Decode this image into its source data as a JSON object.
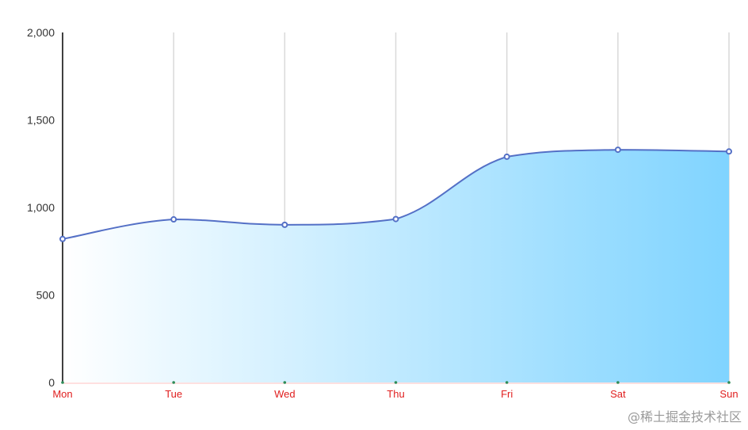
{
  "chart_data": {
    "type": "area",
    "categories": [
      "Mon",
      "Tue",
      "Wed",
      "Thu",
      "Fri",
      "Sat",
      "Sun"
    ],
    "series": [
      {
        "values": [
          820,
          932,
          901,
          934,
          1290,
          1330,
          1320
        ]
      }
    ],
    "ylim": [
      0,
      2000
    ],
    "yticks": [
      "0",
      "500",
      "1,000",
      "1,500",
      "2,000"
    ],
    "smooth": true,
    "grid": {
      "vertical": true,
      "horizontal": false
    },
    "colors": {
      "line": "#5470c6",
      "area_start": "#ffffff",
      "area_end": "#80d4ff",
      "xlabel": "#e01e1e",
      "ylabel": "#333333",
      "gridline": "#d9d9d9",
      "tick_dot": "#2e8b57"
    }
  },
  "watermark": "@稀土掘金技术社区"
}
